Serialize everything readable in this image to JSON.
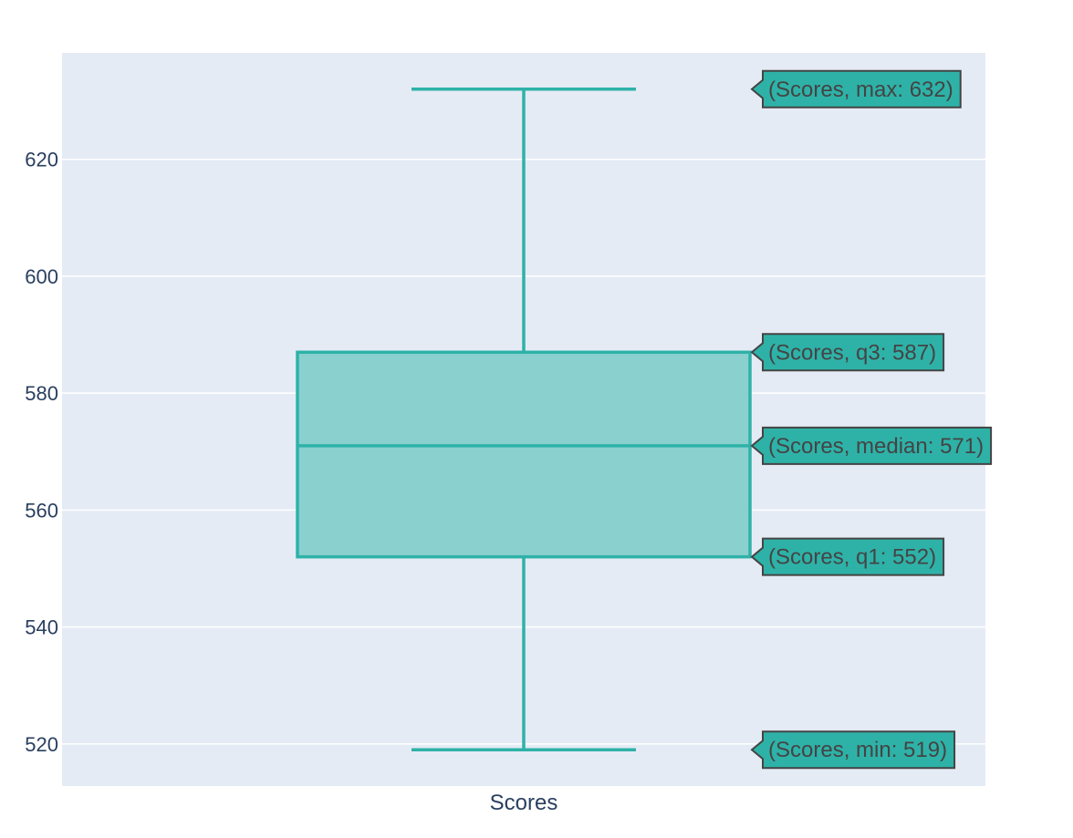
{
  "chart_data": {
    "type": "box",
    "title": "",
    "xlabel": "",
    "ylabel": "",
    "categories": [
      "Scores"
    ],
    "series": [
      {
        "name": "Scores",
        "min": 519,
        "q1": 552,
        "median": 571,
        "q3": 587,
        "max": 632
      }
    ],
    "ylim": [
      512.8,
      638.2
    ],
    "yticks": [
      520,
      540,
      560,
      580,
      600,
      620
    ],
    "grid": true,
    "legend": "none",
    "hover_labels": [
      {
        "stat": "max",
        "text": "(Scores, max: 632)"
      },
      {
        "stat": "q3",
        "text": "(Scores, q3: 587)"
      },
      {
        "stat": "median",
        "text": "(Scores, median: 571)"
      },
      {
        "stat": "q1",
        "text": "(Scores, q1: 552)"
      },
      {
        "stat": "min",
        "text": "(Scores, min: 519)"
      }
    ],
    "colors": {
      "box_line": "#2eb2a8",
      "box_fill": "#8ad0ce",
      "plot_bg": "#e5ebf5",
      "grid": "#ffffff",
      "axis_text": "#2a3f5f",
      "label_bg": "#2eb2a8",
      "label_border": "#444444",
      "label_text": "#444444"
    }
  }
}
